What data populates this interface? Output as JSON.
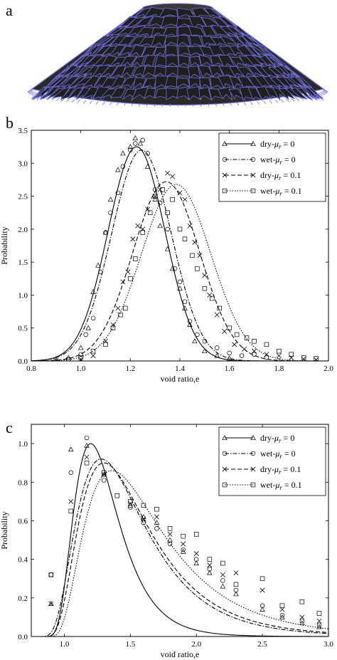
{
  "panels": {
    "a_label": "a",
    "b_label": "b",
    "c_label": "c"
  },
  "colors": {
    "mesh_edge": "#6f6cd9",
    "mesh_face": "#1f1f1f",
    "axes": "#000000"
  },
  "chart_data": [
    {
      "type": "scatter",
      "xlabel": "void ratio,e",
      "ylabel": "Probability",
      "xlim": [
        0.8,
        2.0
      ],
      "ylim": [
        0,
        3.5
      ],
      "xticks": [
        "0.8",
        "1.0",
        "1.2",
        "1.4",
        "1.6",
        "1.8",
        "2.0"
      ],
      "yticks": [
        "0.0",
        "0.5",
        "1.0",
        "1.5",
        "2.0",
        "2.5",
        "3.0",
        "3.5"
      ],
      "legend_position": "top-right",
      "series": [
        {
          "name": "dry-μr = 0",
          "marker": "triangle",
          "line": "solid",
          "fit": {
            "kind": "gauss",
            "amp": 3.25,
            "mu": 1.225,
            "sigma": 0.115
          },
          "points": [
            [
              0.9,
              0.01
            ],
            [
              0.95,
              0.05
            ],
            [
              1.0,
              0.2
            ],
            [
              1.03,
              0.5
            ],
            [
              1.05,
              1.05
            ],
            [
              1.07,
              1.45
            ],
            [
              1.1,
              1.95
            ],
            [
              1.12,
              2.45
            ],
            [
              1.15,
              2.9
            ],
            [
              1.17,
              3.15
            ],
            [
              1.2,
              3.25
            ],
            [
              1.22,
              3.38
            ],
            [
              1.24,
              3.3
            ],
            [
              1.27,
              2.95
            ],
            [
              1.3,
              2.45
            ],
            [
              1.32,
              2.05
            ],
            [
              1.35,
              1.7
            ],
            [
              1.37,
              1.4
            ],
            [
              1.4,
              1.1
            ],
            [
              1.42,
              0.8
            ],
            [
              1.44,
              0.55
            ],
            [
              1.46,
              0.3
            ],
            [
              1.5,
              0.15
            ],
            [
              1.55,
              0.08
            ],
            [
              1.6,
              0.04
            ]
          ]
        },
        {
          "name": "wet-μr = 0",
          "marker": "circle",
          "line": "dashdot",
          "fit": {
            "kind": "gauss",
            "amp": 3.2,
            "mu": 1.245,
            "sigma": 0.12
          },
          "points": [
            [
              0.95,
              0.02
            ],
            [
              1.0,
              0.1
            ],
            [
              1.02,
              0.4
            ],
            [
              1.05,
              0.65
            ],
            [
              1.08,
              1.35
            ],
            [
              1.1,
              1.95
            ],
            [
              1.12,
              2.25
            ],
            [
              1.15,
              2.55
            ],
            [
              1.17,
              2.95
            ],
            [
              1.2,
              3.2
            ],
            [
              1.22,
              3.3
            ],
            [
              1.25,
              3.35
            ],
            [
              1.27,
              3.15
            ],
            [
              1.3,
              2.6
            ],
            [
              1.32,
              2.4
            ],
            [
              1.35,
              2.0
            ],
            [
              1.38,
              1.4
            ],
            [
              1.4,
              1.2
            ],
            [
              1.42,
              0.9
            ],
            [
              1.44,
              0.6
            ],
            [
              1.47,
              0.4
            ],
            [
              1.5,
              0.3
            ],
            [
              1.55,
              0.2
            ],
            [
              1.6,
              0.12
            ],
            [
              1.65,
              0.08
            ],
            [
              1.7,
              0.1
            ],
            [
              1.75,
              0.05
            ]
          ]
        },
        {
          "name": "dry-μr = 0.1",
          "marker": "x",
          "line": "dashed",
          "fit": {
            "kind": "gauss",
            "amp": 2.72,
            "mu": 1.345,
            "sigma": 0.135
          },
          "points": [
            [
              0.9,
              0.01
            ],
            [
              1.0,
              0.02
            ],
            [
              1.05,
              0.08
            ],
            [
              1.1,
              0.3
            ],
            [
              1.13,
              0.55
            ],
            [
              1.15,
              0.8
            ],
            [
              1.17,
              1.2
            ],
            [
              1.19,
              1.35
            ],
            [
              1.21,
              1.85
            ],
            [
              1.23,
              2.05
            ],
            [
              1.25,
              2.0
            ],
            [
              1.27,
              2.3
            ],
            [
              1.3,
              2.5
            ],
            [
              1.32,
              2.6
            ],
            [
              1.35,
              2.85
            ],
            [
              1.37,
              2.8
            ],
            [
              1.4,
              2.55
            ],
            [
              1.42,
              2.45
            ],
            [
              1.44,
              2.05
            ],
            [
              1.46,
              1.8
            ],
            [
              1.48,
              1.6
            ],
            [
              1.5,
              1.3
            ],
            [
              1.52,
              1.0
            ],
            [
              1.55,
              0.7
            ],
            [
              1.58,
              0.45
            ],
            [
              1.62,
              0.25
            ],
            [
              1.66,
              0.18
            ],
            [
              1.7,
              0.15
            ],
            [
              1.75,
              0.1
            ],
            [
              1.8,
              0.08
            ],
            [
              1.85,
              0.05
            ],
            [
              1.9,
              0.03
            ],
            [
              1.95,
              0.02
            ]
          ]
        },
        {
          "name": "wet-μr = 0.1",
          "marker": "square",
          "line": "dotted",
          "fit": {
            "kind": "gauss",
            "amp": 2.68,
            "mu": 1.385,
            "sigma": 0.14
          },
          "points": [
            [
              0.95,
              0.02
            ],
            [
              1.0,
              0.05
            ],
            [
              1.05,
              0.15
            ],
            [
              1.1,
              0.25
            ],
            [
              1.13,
              0.5
            ],
            [
              1.16,
              0.7
            ],
            [
              1.18,
              0.8
            ],
            [
              1.2,
              1.25
            ],
            [
              1.22,
              1.55
            ],
            [
              1.25,
              1.95
            ],
            [
              1.28,
              2.25
            ],
            [
              1.3,
              2.5
            ],
            [
              1.33,
              2.6
            ],
            [
              1.35,
              2.25
            ],
            [
              1.37,
              2.45
            ],
            [
              1.4,
              2.0
            ],
            [
              1.42,
              1.85
            ],
            [
              1.45,
              1.6
            ],
            [
              1.47,
              1.4
            ],
            [
              1.5,
              1.1
            ],
            [
              1.53,
              0.95
            ],
            [
              1.56,
              0.8
            ],
            [
              1.6,
              0.5
            ],
            [
              1.63,
              0.4
            ],
            [
              1.67,
              0.35
            ],
            [
              1.7,
              0.3
            ],
            [
              1.75,
              0.25
            ],
            [
              1.8,
              0.15
            ],
            [
              1.85,
              0.1
            ],
            [
              1.9,
              0.05
            ],
            [
              1.95,
              0.04
            ]
          ]
        }
      ]
    },
    {
      "type": "scatter",
      "xlabel": "void ratio,e",
      "ylabel": "Probability",
      "xlim": [
        0.75,
        3.0
      ],
      "ylim": [
        0,
        1.1
      ],
      "xticks": [
        "1.0",
        "1.5",
        "2.0",
        "2.5",
        "3.0"
      ],
      "yticks": [
        "0.0",
        "0.2",
        "0.4",
        "0.6",
        "0.8",
        "1.0"
      ],
      "legend_position": "top-right",
      "series": [
        {
          "name": "dry-μr = 0",
          "marker": "triangle",
          "line": "solid",
          "fit": {
            "kind": "lognorm",
            "peak": 1.0,
            "mode": 1.2,
            "s": 0.42,
            "x0": 0.8
          },
          "points": [
            [
              0.9,
              0.17
            ],
            [
              1.05,
              0.97
            ],
            [
              1.17,
              0.99
            ],
            [
              1.3,
              0.84
            ],
            [
              1.5,
              0.68
            ],
            [
              1.6,
              0.62
            ],
            [
              1.7,
              0.59
            ],
            [
              1.8,
              0.5
            ],
            [
              1.9,
              0.44
            ],
            [
              2.0,
              0.38
            ],
            [
              2.1,
              0.33
            ],
            [
              2.2,
              0.26
            ],
            [
              2.3,
              0.22
            ],
            [
              2.5,
              0.14
            ],
            [
              2.65,
              0.1
            ],
            [
              2.8,
              0.07
            ],
            [
              2.93,
              0.05
            ]
          ]
        },
        {
          "name": "wet-μr = 0",
          "marker": "circle",
          "line": "dashdot",
          "fit": {
            "kind": "lognorm",
            "peak": 0.92,
            "mode": 1.28,
            "s": 0.52,
            "x0": 0.78
          },
          "points": [
            [
              0.9,
              0.32
            ],
            [
              1.05,
              0.85
            ],
            [
              1.17,
              1.03
            ],
            [
              1.3,
              0.81
            ],
            [
              1.5,
              0.67
            ],
            [
              1.6,
              0.59
            ],
            [
              1.7,
              0.56
            ],
            [
              1.8,
              0.48
            ],
            [
              1.9,
              0.45
            ],
            [
              2.0,
              0.4
            ],
            [
              2.1,
              0.35
            ],
            [
              2.2,
              0.29
            ],
            [
              2.3,
              0.24
            ],
            [
              2.5,
              0.16
            ],
            [
              2.65,
              0.11
            ],
            [
              2.8,
              0.08
            ],
            [
              2.93,
              0.06
            ]
          ]
        },
        {
          "name": "dry-μr = 0.1",
          "marker": "x",
          "line": "dashed",
          "fit": {
            "kind": "lognorm",
            "peak": 0.9,
            "mode": 1.3,
            "s": 0.55,
            "x0": 0.82
          },
          "points": [
            [
              0.9,
              0.17
            ],
            [
              1.05,
              0.7
            ],
            [
              1.17,
              0.93
            ],
            [
              1.3,
              0.84
            ],
            [
              1.5,
              0.69
            ],
            [
              1.6,
              0.61
            ],
            [
              1.7,
              0.62
            ],
            [
              1.8,
              0.53
            ],
            [
              1.9,
              0.48
            ],
            [
              2.0,
              0.43
            ],
            [
              2.1,
              0.37
            ],
            [
              2.2,
              0.32
            ],
            [
              2.3,
              0.33
            ],
            [
              2.5,
              0.24
            ],
            [
              2.65,
              0.14
            ],
            [
              2.8,
              0.1
            ],
            [
              2.93,
              0.08
            ]
          ]
        },
        {
          "name": "wet-μr = 0.1",
          "marker": "square",
          "line": "dotted",
          "fit": {
            "kind": "lognorm",
            "peak": 0.86,
            "mode": 1.36,
            "s": 0.58,
            "x0": 0.85
          },
          "points": [
            [
              0.9,
              0.32
            ],
            [
              1.05,
              0.65
            ],
            [
              1.17,
              0.9
            ],
            [
              1.3,
              0.85
            ],
            [
              1.4,
              0.73
            ],
            [
              1.5,
              0.7
            ],
            [
              1.6,
              0.68
            ],
            [
              1.7,
              0.66
            ],
            [
              1.8,
              0.56
            ],
            [
              1.9,
              0.52
            ],
            [
              2.0,
              0.53
            ],
            [
              2.1,
              0.4
            ],
            [
              2.2,
              0.38
            ],
            [
              2.3,
              0.27
            ],
            [
              2.5,
              0.3
            ],
            [
              2.65,
              0.16
            ],
            [
              2.8,
              0.18
            ],
            [
              2.93,
              0.12
            ]
          ]
        }
      ]
    }
  ]
}
